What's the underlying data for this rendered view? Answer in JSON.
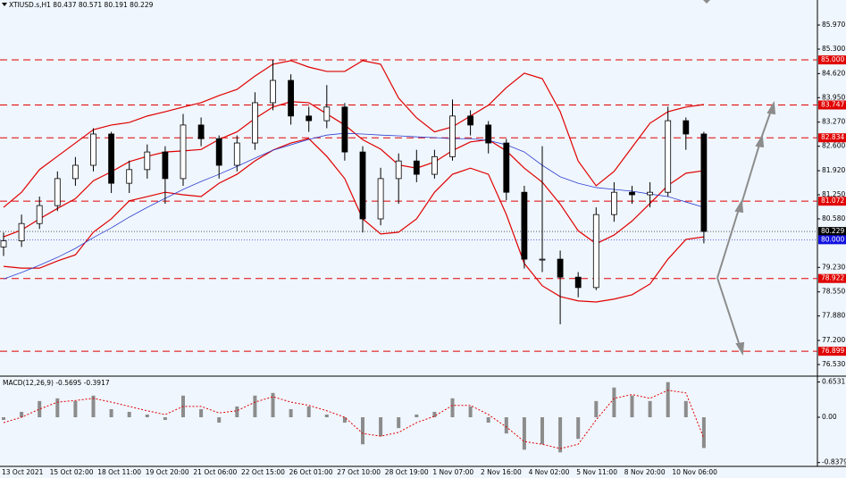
{
  "chart_data": [
    {
      "type": "candlestick",
      "title": "XTIUSD.s,H1  80.437 80.571 80.191 80.229",
      "ylim": [
        76.232,
        86.666
      ],
      "yticks": [
        {
          "value": 85.97,
          "label": "85.970"
        },
        {
          "value": 85.3,
          "label": "85.300"
        },
        {
          "value": 84.62,
          "label": "84.620"
        },
        {
          "value": 83.95,
          "label": "83.950"
        },
        {
          "value": 83.27,
          "label": "83.270"
        },
        {
          "value": 82.6,
          "label": "82.600"
        },
        {
          "value": 81.92,
          "label": "81.920"
        },
        {
          "value": 81.25,
          "label": "81.250"
        },
        {
          "value": 80.58,
          "label": "80.580"
        },
        {
          "value": 79.23,
          "label": "79.230"
        },
        {
          "value": 78.55,
          "label": "78.550"
        },
        {
          "value": 77.88,
          "label": "77.880"
        },
        {
          "value": 77.2,
          "label": "77.200"
        },
        {
          "value": 76.53,
          "label": "76.530"
        }
      ],
      "x_labels": [
        "13 Oct 2021",
        "15 Oct 02:00",
        "18 Oct 11:00",
        "19 Oct 20:00",
        "21 Oct 06:00",
        "22 Oct 15:00",
        "26 Oct 01:00",
        "27 Oct 10:00",
        "28 Oct 19:00",
        "1 Nov 07:00",
        "2 Nov 16:00",
        "4 Nov 02:00",
        "5 Nov 11:00",
        "8 Nov 20:00",
        "10 Nov 06:00"
      ],
      "open": [
        79.8,
        79.97,
        80.45,
        80.95,
        81.7,
        82.07,
        82.94,
        81.57,
        81.95,
        82.44,
        81.7,
        83.19,
        82.81,
        82.07,
        82.69,
        83.81,
        84.43,
        83.44,
        83.31,
        83.69,
        82.44,
        80.58,
        81.7,
        82.19,
        81.82,
        82.31,
        83.44,
        83.19,
        82.69,
        81.32,
        79.46,
        79.46,
        78.96,
        78.67,
        80.7,
        81.32,
        81.25,
        81.32,
        83.31,
        82.94
      ],
      "high": [
        80.2,
        80.7,
        81.2,
        81.9,
        82.3,
        83.1,
        83.0,
        82.2,
        82.65,
        82.6,
        83.5,
        83.4,
        82.9,
        82.9,
        84.1,
        85.0,
        84.6,
        83.7,
        84.3,
        83.8,
        82.6,
        82.0,
        82.4,
        82.5,
        82.5,
        83.9,
        83.6,
        83.3,
        82.8,
        81.5,
        82.6,
        79.7,
        79.1,
        80.9,
        81.6,
        81.5,
        81.6,
        83.7,
        83.4,
        83.0
      ],
      "low": [
        79.55,
        79.8,
        80.3,
        80.8,
        81.5,
        81.9,
        81.3,
        81.3,
        81.7,
        81.0,
        81.5,
        82.6,
        81.7,
        81.9,
        82.5,
        83.6,
        83.2,
        83.0,
        83.1,
        82.2,
        80.2,
        80.4,
        81.0,
        81.6,
        81.7,
        82.2,
        82.9,
        82.4,
        81.1,
        79.2,
        79.1,
        77.65,
        78.4,
        78.6,
        80.5,
        81.0,
        80.9,
        81.2,
        82.5,
        79.9
      ],
      "close": [
        79.97,
        80.45,
        80.95,
        81.7,
        82.07,
        82.94,
        81.57,
        81.95,
        82.44,
        81.7,
        83.19,
        82.81,
        82.07,
        82.69,
        83.81,
        84.43,
        83.44,
        83.31,
        83.69,
        82.44,
        80.58,
        81.7,
        82.19,
        81.82,
        82.31,
        83.44,
        83.19,
        82.69,
        81.32,
        79.46,
        79.46,
        78.96,
        78.67,
        80.7,
        81.32,
        81.25,
        81.32,
        83.31,
        82.94,
        80.23
      ],
      "series": [
        {
          "color": "#e00000",
          "values": [
            80.9,
            81.32,
            81.95,
            82.32,
            82.69,
            83.06,
            83.19,
            83.26,
            83.44,
            83.56,
            83.69,
            83.81,
            84.01,
            84.18,
            84.55,
            84.88,
            84.98,
            84.8,
            84.68,
            84.68,
            84.98,
            84.88,
            83.94,
            83.39,
            83.0,
            83.14,
            83.44,
            83.74,
            84.23,
            84.63,
            84.48,
            83.56,
            82.19,
            81.5,
            81.9,
            82.57,
            83.24,
            83.56,
            83.69,
            83.76
          ]
        },
        {
          "color": "#e00000",
          "values": [
            80.08,
            80.27,
            80.58,
            80.87,
            81.14,
            81.64,
            81.89,
            82.17,
            82.32,
            82.44,
            82.47,
            82.51,
            82.79,
            83.0,
            83.37,
            83.69,
            83.84,
            83.81,
            83.5,
            83.19,
            82.78,
            82.52,
            82.08,
            81.99,
            82.16,
            82.48,
            82.72,
            82.78,
            82.47,
            81.99,
            81.6,
            80.99,
            80.25,
            79.89,
            80.13,
            80.52,
            81.01,
            81.51,
            81.85,
            81.92
          ]
        },
        {
          "color": "#e00000",
          "values": [
            79.26,
            79.21,
            79.21,
            79.41,
            79.58,
            80.21,
            80.58,
            81.08,
            81.2,
            81.32,
            81.25,
            81.2,
            81.57,
            81.82,
            82.19,
            82.49,
            82.69,
            82.81,
            82.32,
            81.7,
            80.58,
            80.16,
            80.21,
            80.58,
            81.32,
            81.82,
            81.99,
            81.82,
            80.7,
            79.34,
            78.72,
            78.42,
            78.3,
            78.27,
            78.35,
            78.47,
            78.77,
            79.46,
            80.01,
            80.08
          ]
        },
        {
          "color": "#3040d0",
          "values": [
            78.91,
            79.09,
            79.29,
            79.51,
            79.76,
            80.06,
            80.33,
            80.63,
            80.9,
            81.15,
            81.4,
            81.62,
            81.82,
            82.04,
            82.27,
            82.49,
            82.64,
            82.79,
            82.91,
            82.96,
            82.94,
            82.91,
            82.89,
            82.86,
            82.84,
            82.81,
            82.81,
            82.76,
            82.64,
            82.44,
            82.07,
            81.75,
            81.57,
            81.45,
            81.4,
            81.35,
            81.27,
            81.2,
            81.05,
            80.9
          ]
        }
      ],
      "levels": [
        {
          "value": 85.0,
          "label": "85.000",
          "color": "#e00000"
        },
        {
          "value": 83.747,
          "label": "83.747",
          "color": "#e00000"
        },
        {
          "value": 82.834,
          "label": "82.834",
          "color": "#e00000"
        },
        {
          "value": 81.072,
          "label": "81.072",
          "color": "#e00000"
        },
        {
          "value": 78.922,
          "label": "78.922",
          "color": "#e00000"
        },
        {
          "value": 76.899,
          "label": "76.899",
          "color": "#e00000"
        }
      ],
      "price_marks": [
        {
          "value": 80.229,
          "label": "80.229",
          "color": "#000000"
        },
        {
          "value": 80.0,
          "label": "80.000",
          "color": "#1010e0"
        }
      ]
    },
    {
      "type": "macd",
      "title": "MACD(12,26,9) -0.5695 -0.3917",
      "ylim": [
        -0.909,
        0.711
      ],
      "yticks": [
        0.6531,
        {
          "value": 0,
          "label": "0.00"
        },
        -0.8379
      ],
      "values": [
        -0.05,
        0.1,
        0.3,
        0.35,
        0.3,
        0.4,
        0.15,
        0.1,
        0.05,
        -0.05,
        0.4,
        0.15,
        -0.1,
        0.2,
        0.4,
        0.45,
        0.15,
        0.2,
        0.05,
        -0.1,
        -0.5,
        -0.35,
        -0.2,
        0.05,
        0.1,
        0.35,
        0.2,
        -0.1,
        -0.3,
        -0.6,
        -0.5,
        -0.65,
        -0.4,
        0.3,
        0.55,
        0.4,
        0.3,
        0.65,
        0.3,
        -0.5695
      ],
      "color": "#8c8c8c",
      "signal": [
        -0.1,
        0.0,
        0.15,
        0.28,
        0.31,
        0.35,
        0.28,
        0.2,
        0.12,
        0.05,
        0.2,
        0.2,
        0.08,
        0.12,
        0.28,
        0.38,
        0.28,
        0.22,
        0.12,
        0.0,
        -0.3,
        -0.35,
        -0.28,
        -0.1,
        0.02,
        0.22,
        0.22,
        0.05,
        -0.18,
        -0.45,
        -0.5,
        -0.58,
        -0.5,
        -0.05,
        0.35,
        0.42,
        0.35,
        0.5,
        0.45,
        -0.3917
      ],
      "signal_color": "#e00000"
    }
  ]
}
